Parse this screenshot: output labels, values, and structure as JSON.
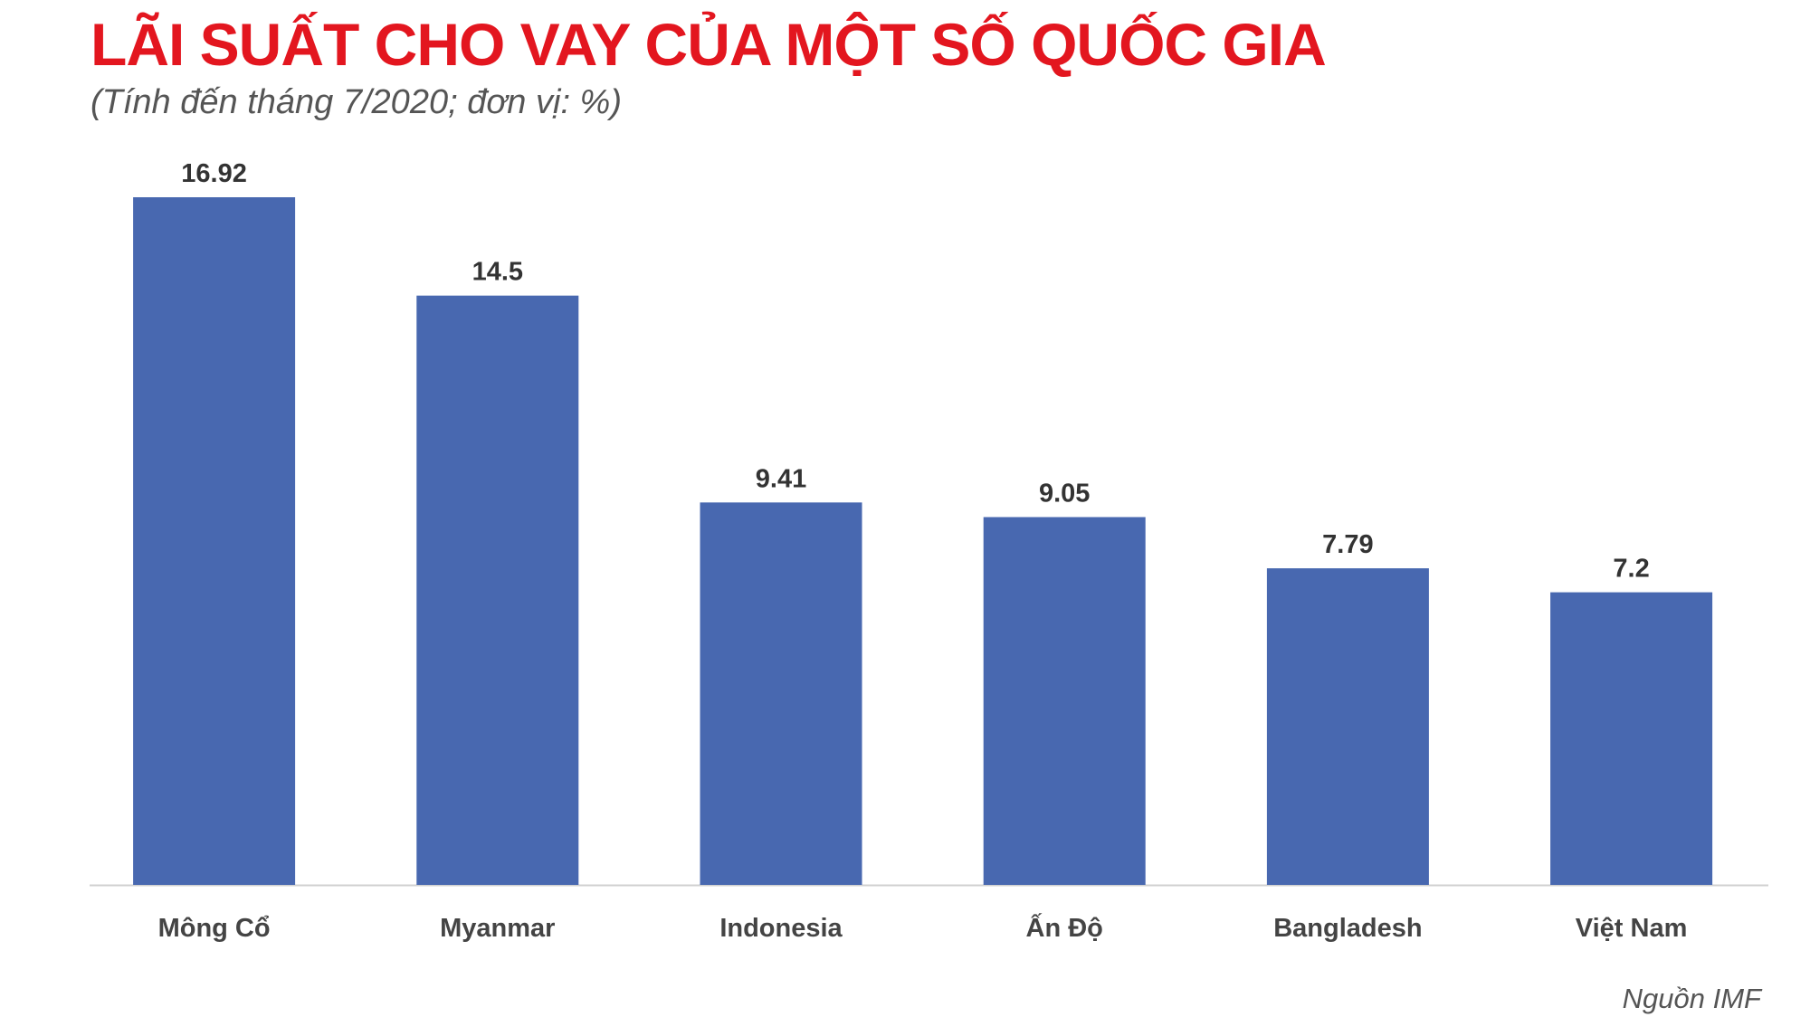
{
  "chart_data": {
    "type": "bar",
    "title": "LÃI SUẤT CHO VAY CỦA MỘT SỐ QUỐC GIA",
    "subtitle": "(Tính đến tháng 7/2020; đơn vị: %)",
    "source": "Nguồn IMF",
    "categories": [
      "Mông Cổ",
      "Myanmar",
      "Indonesia",
      "Ấn Độ",
      "Bangladesh",
      "Việt Nam"
    ],
    "values": [
      16.92,
      14.5,
      9.41,
      9.05,
      7.79,
      7.2
    ],
    "color": "#4868b0"
  }
}
